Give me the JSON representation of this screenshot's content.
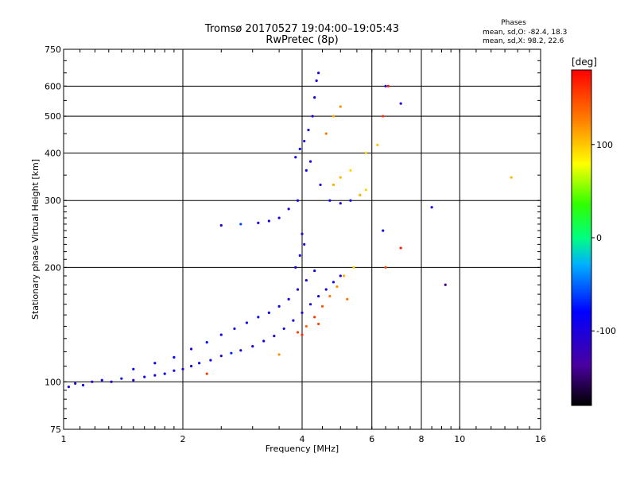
{
  "chart_data": {
    "type": "scatter",
    "title": "Tromsø 20170527 19:04:00–19:05:43",
    "subtitle": "RwPretec (8p)",
    "xlabel": "Frequency [MHz]",
    "ylabel": "Stationary phase Virtual Height [km]",
    "x_scale": "log",
    "y_scale": "log",
    "xlim": [
      1,
      16
    ],
    "ylim": [
      75,
      750
    ],
    "x_ticks": [
      1,
      2,
      4,
      6,
      8,
      10,
      16
    ],
    "y_ticks": [
      75,
      100,
      200,
      300,
      400,
      500,
      600,
      750
    ],
    "grid": true,
    "stats": {
      "heading": "Phases",
      "o_line": "mean, sd,O: -82.4, 18.3",
      "x_line": "mean, sd,X:  98.2, 22.6"
    },
    "colorbar": {
      "label": "[deg]",
      "range": [
        -180,
        180
      ],
      "ticks": [
        100,
        0,
        -100
      ],
      "placement": "right"
    },
    "series": [
      {
        "values": [
          {
            "x": 1.03,
            "y": 97,
            "phase": -100
          },
          {
            "x": 1.07,
            "y": 99,
            "phase": -105
          },
          {
            "x": 1.12,
            "y": 98,
            "phase": -95
          },
          {
            "x": 1.18,
            "y": 100,
            "phase": -100
          },
          {
            "x": 1.25,
            "y": 101,
            "phase": -90
          },
          {
            "x": 1.32,
            "y": 100,
            "phase": -100
          },
          {
            "x": 1.4,
            "y": 102,
            "phase": -95
          },
          {
            "x": 1.5,
            "y": 101,
            "phase": -100
          },
          {
            "x": 1.6,
            "y": 103,
            "phase": -95
          },
          {
            "x": 1.7,
            "y": 104,
            "phase": -100
          },
          {
            "x": 1.8,
            "y": 105,
            "phase": -90
          },
          {
            "x": 1.9,
            "y": 107,
            "phase": -95
          },
          {
            "x": 2.0,
            "y": 108,
            "phase": -100
          },
          {
            "x": 2.1,
            "y": 110,
            "phase": -95
          },
          {
            "x": 2.2,
            "y": 112,
            "phase": -85
          },
          {
            "x": 2.35,
            "y": 114,
            "phase": -95
          },
          {
            "x": 2.5,
            "y": 117,
            "phase": -100
          },
          {
            "x": 2.65,
            "y": 119,
            "phase": -70
          },
          {
            "x": 2.8,
            "y": 121,
            "phase": -95
          },
          {
            "x": 3.0,
            "y": 124,
            "phase": -100
          },
          {
            "x": 3.2,
            "y": 128,
            "phase": -95
          },
          {
            "x": 3.4,
            "y": 132,
            "phase": -100
          },
          {
            "x": 3.6,
            "y": 138,
            "phase": -90
          },
          {
            "x": 3.8,
            "y": 145,
            "phase": -95
          },
          {
            "x": 4.0,
            "y": 152,
            "phase": -100
          },
          {
            "x": 4.2,
            "y": 160,
            "phase": -95
          },
          {
            "x": 4.4,
            "y": 168,
            "phase": -100
          },
          {
            "x": 4.6,
            "y": 175,
            "phase": -95
          },
          {
            "x": 4.8,
            "y": 183,
            "phase": -90
          },
          {
            "x": 5.0,
            "y": 190,
            "phase": -100
          },
          {
            "x": 1.5,
            "y": 108,
            "phase": -85
          },
          {
            "x": 1.7,
            "y": 112,
            "phase": -90
          },
          {
            "x": 1.9,
            "y": 116,
            "phase": -80
          },
          {
            "x": 2.1,
            "y": 122,
            "phase": -95
          },
          {
            "x": 2.3,
            "y": 127,
            "phase": -75
          },
          {
            "x": 2.5,
            "y": 133,
            "phase": -90
          },
          {
            "x": 2.7,
            "y": 138,
            "phase": -95
          },
          {
            "x": 2.9,
            "y": 143,
            "phase": -90
          },
          {
            "x": 3.1,
            "y": 148,
            "phase": -85
          },
          {
            "x": 3.3,
            "y": 152,
            "phase": -95
          },
          {
            "x": 3.5,
            "y": 158,
            "phase": -90
          },
          {
            "x": 3.7,
            "y": 165,
            "phase": -95
          },
          {
            "x": 3.9,
            "y": 175,
            "phase": -100
          },
          {
            "x": 4.1,
            "y": 185,
            "phase": -95
          },
          {
            "x": 4.3,
            "y": 196,
            "phase": -90
          },
          {
            "x": 3.85,
            "y": 200,
            "phase": -100
          },
          {
            "x": 3.95,
            "y": 215,
            "phase": -95
          },
          {
            "x": 4.05,
            "y": 230,
            "phase": -100
          },
          {
            "x": 4.0,
            "y": 245,
            "phase": -105
          },
          {
            "x": 2.5,
            "y": 258,
            "phase": -100
          },
          {
            "x": 2.8,
            "y": 260,
            "phase": -60
          },
          {
            "x": 3.1,
            "y": 262,
            "phase": -95
          },
          {
            "x": 3.3,
            "y": 265,
            "phase": -100
          },
          {
            "x": 3.5,
            "y": 270,
            "phase": -95
          },
          {
            "x": 3.7,
            "y": 285,
            "phase": -100
          },
          {
            "x": 3.9,
            "y": 300,
            "phase": -95
          },
          {
            "x": 3.85,
            "y": 390,
            "phase": -95
          },
          {
            "x": 3.95,
            "y": 410,
            "phase": -90
          },
          {
            "x": 4.05,
            "y": 430,
            "phase": -100
          },
          {
            "x": 4.15,
            "y": 460,
            "phase": -95
          },
          {
            "x": 4.25,
            "y": 500,
            "phase": -100
          },
          {
            "x": 4.3,
            "y": 560,
            "phase": -95
          },
          {
            "x": 4.35,
            "y": 620,
            "phase": -100
          },
          {
            "x": 4.4,
            "y": 650,
            "phase": -95
          },
          {
            "x": 4.2,
            "y": 380,
            "phase": -100
          },
          {
            "x": 4.1,
            "y": 360,
            "phase": -95
          },
          {
            "x": 4.45,
            "y": 330,
            "phase": -100
          },
          {
            "x": 4.7,
            "y": 300,
            "phase": -95
          },
          {
            "x": 5.0,
            "y": 295,
            "phase": -100
          },
          {
            "x": 5.3,
            "y": 300,
            "phase": -95
          },
          {
            "x": 5.6,
            "y": 310,
            "phase": -100
          },
          {
            "x": 6.4,
            "y": 250,
            "phase": -95
          },
          {
            "x": 6.5,
            "y": 600,
            "phase": -100
          },
          {
            "x": 8.5,
            "y": 288,
            "phase": -100
          },
          {
            "x": 9.2,
            "y": 180,
            "phase": -140
          },
          {
            "x": 7.1,
            "y": 540,
            "phase": -100
          }
        ]
      },
      {
        "values": [
          {
            "x": 3.9,
            "y": 135,
            "phase": 150
          },
          {
            "x": 4.1,
            "y": 140,
            "phase": 140
          },
          {
            "x": 4.3,
            "y": 148,
            "phase": 155
          },
          {
            "x": 4.5,
            "y": 158,
            "phase": 145
          },
          {
            "x": 4.7,
            "y": 168,
            "phase": 130
          },
          {
            "x": 4.9,
            "y": 178,
            "phase": 120
          },
          {
            "x": 5.1,
            "y": 190,
            "phase": 110
          },
          {
            "x": 5.4,
            "y": 200,
            "phase": 100
          },
          {
            "x": 4.0,
            "y": 133,
            "phase": 160
          },
          {
            "x": 4.4,
            "y": 142,
            "phase": 150
          },
          {
            "x": 4.8,
            "y": 330,
            "phase": 110
          },
          {
            "x": 5.0,
            "y": 345,
            "phase": 105
          },
          {
            "x": 5.3,
            "y": 360,
            "phase": 95
          },
          {
            "x": 5.6,
            "y": 310,
            "phase": 100
          },
          {
            "x": 5.8,
            "y": 320,
            "phase": 95
          },
          {
            "x": 4.8,
            "y": 500,
            "phase": 110
          },
          {
            "x": 5.0,
            "y": 530,
            "phase": 120
          },
          {
            "x": 4.6,
            "y": 450,
            "phase": 130
          },
          {
            "x": 6.2,
            "y": 420,
            "phase": 100
          },
          {
            "x": 6.5,
            "y": 200,
            "phase": 150
          },
          {
            "x": 6.6,
            "y": 600,
            "phase": 170
          },
          {
            "x": 2.3,
            "y": 105,
            "phase": 155
          },
          {
            "x": 3.5,
            "y": 118,
            "phase": 120
          },
          {
            "x": 5.2,
            "y": 165,
            "phase": 130
          },
          {
            "x": 5.8,
            "y": 400,
            "phase": 100
          },
          {
            "x": 13.5,
            "y": 345,
            "phase": 105
          },
          {
            "x": 7.1,
            "y": 225,
            "phase": 170
          },
          {
            "x": 6.4,
            "y": 500,
            "phase": 160
          }
        ]
      }
    ]
  }
}
